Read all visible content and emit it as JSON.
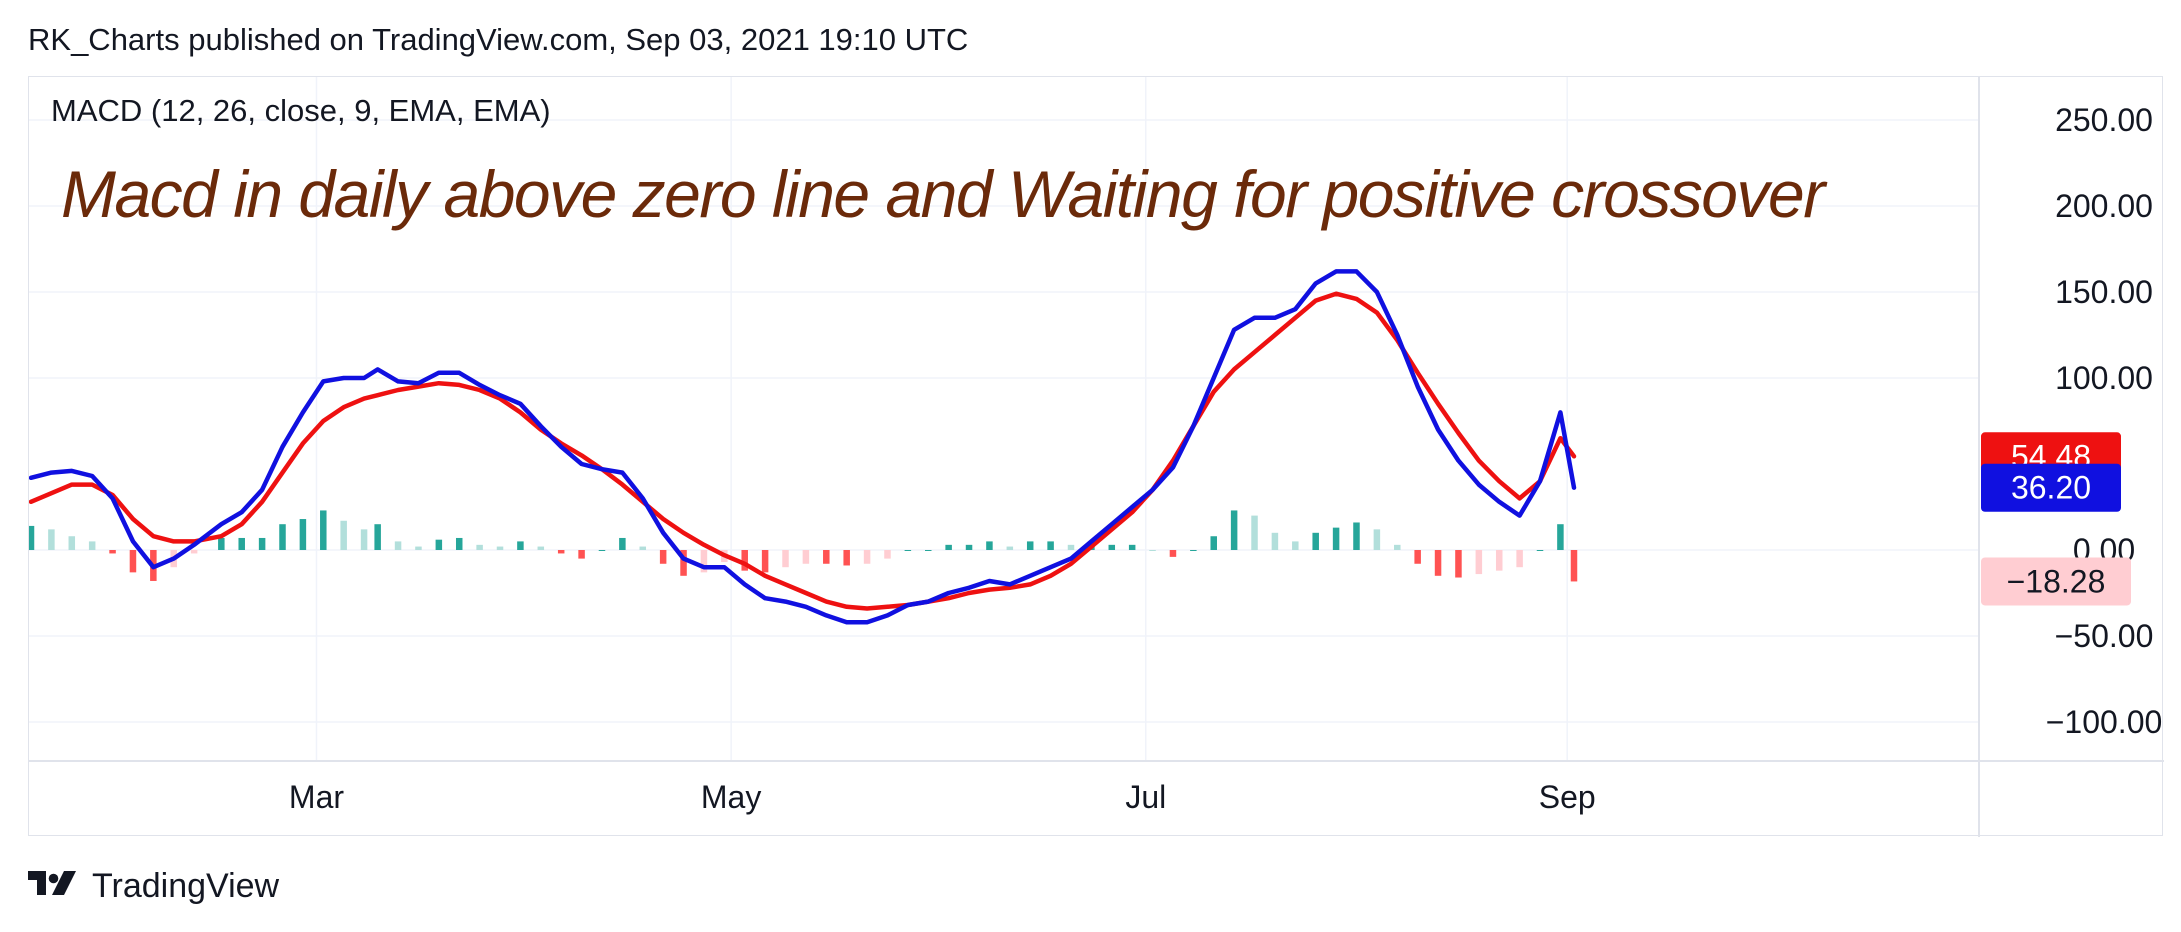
{
  "header": {
    "publish_line": "RK_Charts published on TradingView.com, Sep 03, 2021 19:10 UTC"
  },
  "indicator_label": "MACD (12, 26, close, 9, EMA, EMA)",
  "annotation": "Macd in daily above zero line and Waiting for positive crossover",
  "footer": {
    "brand": "TradingView",
    "logo_icon": "tradingview-logo-icon"
  },
  "colors": {
    "macd_line": "#1010e0",
    "signal_line": "#ee1111",
    "hist_pos_strong": "#26a69a",
    "hist_pos_weak": "#b2dfdb",
    "hist_neg_strong": "#ff5252",
    "hist_neg_weak": "#ffcdd2",
    "annotation": "#6b2a0a"
  },
  "chart_data": {
    "type": "line",
    "title": "MACD (12, 26, close, 9, EMA, EMA)",
    "x_range": [
      "2021-01-18",
      "2021-09-02"
    ],
    "ylim": [
      -120,
      270
    ],
    "y_ticks": [
      "250.00",
      "200.00",
      "150.00",
      "100.00",
      "0.00",
      "−50.00",
      "−100.00"
    ],
    "x_ticks": [
      {
        "label": "Mar",
        "date": "2021-03-01"
      },
      {
        "label": "May",
        "date": "2021-05-01"
      },
      {
        "label": "Jul",
        "date": "2021-07-01"
      },
      {
        "label": "Sep",
        "date": "2021-09-01"
      }
    ],
    "price_labels": [
      {
        "text": "54.48",
        "series": "Signal",
        "value": 54.48
      },
      {
        "text": "36.20",
        "series": "MACD",
        "value": 36.2
      },
      {
        "text": "−18.28",
        "series": "Histogram",
        "value": -18.28
      }
    ],
    "grid": true,
    "series": [
      {
        "name": "MACD",
        "points": [
          [
            "2021-01-18",
            42
          ],
          [
            "2021-01-21",
            45
          ],
          [
            "2021-01-24",
            46
          ],
          [
            "2021-01-27",
            43
          ],
          [
            "2021-01-30",
            30
          ],
          [
            "2021-02-02",
            5
          ],
          [
            "2021-02-05",
            -10
          ],
          [
            "2021-02-08",
            -5
          ],
          [
            "2021-02-11",
            3
          ],
          [
            "2021-02-15",
            15
          ],
          [
            "2021-02-18",
            22
          ],
          [
            "2021-02-21",
            35
          ],
          [
            "2021-02-24",
            60
          ],
          [
            "2021-02-27",
            80
          ],
          [
            "2021-03-02",
            98
          ],
          [
            "2021-03-05",
            100
          ],
          [
            "2021-03-08",
            100
          ],
          [
            "2021-03-10",
            105
          ],
          [
            "2021-03-13",
            98
          ],
          [
            "2021-03-16",
            97
          ],
          [
            "2021-03-19",
            103
          ],
          [
            "2021-03-22",
            103
          ],
          [
            "2021-03-25",
            96
          ],
          [
            "2021-03-28",
            90
          ],
          [
            "2021-03-31",
            85
          ],
          [
            "2021-04-03",
            72
          ],
          [
            "2021-04-06",
            60
          ],
          [
            "2021-04-09",
            50
          ],
          [
            "2021-04-12",
            47
          ],
          [
            "2021-04-15",
            45
          ],
          [
            "2021-04-18",
            30
          ],
          [
            "2021-04-21",
            10
          ],
          [
            "2021-04-24",
            -5
          ],
          [
            "2021-04-27",
            -10
          ],
          [
            "2021-04-30",
            -10
          ],
          [
            "2021-05-03",
            -20
          ],
          [
            "2021-05-06",
            -28
          ],
          [
            "2021-05-09",
            -30
          ],
          [
            "2021-05-12",
            -33
          ],
          [
            "2021-05-15",
            -38
          ],
          [
            "2021-05-18",
            -42
          ],
          [
            "2021-05-21",
            -42
          ],
          [
            "2021-05-24",
            -38
          ],
          [
            "2021-05-27",
            -32
          ],
          [
            "2021-05-30",
            -30
          ],
          [
            "2021-06-02",
            -25
          ],
          [
            "2021-06-05",
            -22
          ],
          [
            "2021-06-08",
            -18
          ],
          [
            "2021-06-11",
            -20
          ],
          [
            "2021-06-14",
            -15
          ],
          [
            "2021-06-17",
            -10
          ],
          [
            "2021-06-20",
            -5
          ],
          [
            "2021-06-23",
            5
          ],
          [
            "2021-06-26",
            15
          ],
          [
            "2021-06-29",
            25
          ],
          [
            "2021-07-02",
            35
          ],
          [
            "2021-07-05",
            48
          ],
          [
            "2021-07-08",
            72
          ],
          [
            "2021-07-11",
            100
          ],
          [
            "2021-07-14",
            128
          ],
          [
            "2021-07-17",
            135
          ],
          [
            "2021-07-20",
            135
          ],
          [
            "2021-07-23",
            140
          ],
          [
            "2021-07-26",
            155
          ],
          [
            "2021-07-29",
            162
          ],
          [
            "2021-08-01",
            162
          ],
          [
            "2021-08-04",
            150
          ],
          [
            "2021-08-07",
            125
          ],
          [
            "2021-08-10",
            95
          ],
          [
            "2021-08-13",
            70
          ],
          [
            "2021-08-16",
            52
          ],
          [
            "2021-08-19",
            38
          ],
          [
            "2021-08-22",
            28
          ],
          [
            "2021-08-25",
            20
          ],
          [
            "2021-08-28",
            40
          ],
          [
            "2021-08-31",
            80
          ],
          [
            "2021-09-02",
            36.2
          ]
        ]
      },
      {
        "name": "Signal",
        "points": [
          [
            "2021-01-18",
            28
          ],
          [
            "2021-01-21",
            33
          ],
          [
            "2021-01-24",
            38
          ],
          [
            "2021-01-27",
            38
          ],
          [
            "2021-01-30",
            32
          ],
          [
            "2021-02-02",
            18
          ],
          [
            "2021-02-05",
            8
          ],
          [
            "2021-02-08",
            5
          ],
          [
            "2021-02-11",
            5
          ],
          [
            "2021-02-15",
            8
          ],
          [
            "2021-02-18",
            15
          ],
          [
            "2021-02-21",
            28
          ],
          [
            "2021-02-24",
            45
          ],
          [
            "2021-02-27",
            62
          ],
          [
            "2021-03-02",
            75
          ],
          [
            "2021-03-05",
            83
          ],
          [
            "2021-03-08",
            88
          ],
          [
            "2021-03-10",
            90
          ],
          [
            "2021-03-13",
            93
          ],
          [
            "2021-03-16",
            95
          ],
          [
            "2021-03-19",
            97
          ],
          [
            "2021-03-22",
            96
          ],
          [
            "2021-03-25",
            93
          ],
          [
            "2021-03-28",
            88
          ],
          [
            "2021-03-31",
            80
          ],
          [
            "2021-04-03",
            70
          ],
          [
            "2021-04-06",
            62
          ],
          [
            "2021-04-09",
            55
          ],
          [
            "2021-04-12",
            47
          ],
          [
            "2021-04-15",
            38
          ],
          [
            "2021-04-18",
            28
          ],
          [
            "2021-04-21",
            18
          ],
          [
            "2021-04-24",
            10
          ],
          [
            "2021-04-27",
            3
          ],
          [
            "2021-04-30",
            -3
          ],
          [
            "2021-05-03",
            -8
          ],
          [
            "2021-05-06",
            -15
          ],
          [
            "2021-05-09",
            -20
          ],
          [
            "2021-05-12",
            -25
          ],
          [
            "2021-05-15",
            -30
          ],
          [
            "2021-05-18",
            -33
          ],
          [
            "2021-05-21",
            -34
          ],
          [
            "2021-05-24",
            -33
          ],
          [
            "2021-05-27",
            -32
          ],
          [
            "2021-05-30",
            -30
          ],
          [
            "2021-06-02",
            -28
          ],
          [
            "2021-06-05",
            -25
          ],
          [
            "2021-06-08",
            -23
          ],
          [
            "2021-06-11",
            -22
          ],
          [
            "2021-06-14",
            -20
          ],
          [
            "2021-06-17",
            -15
          ],
          [
            "2021-06-20",
            -8
          ],
          [
            "2021-06-23",
            2
          ],
          [
            "2021-06-26",
            12
          ],
          [
            "2021-06-29",
            22
          ],
          [
            "2021-07-02",
            35
          ],
          [
            "2021-07-05",
            52
          ],
          [
            "2021-07-08",
            72
          ],
          [
            "2021-07-11",
            92
          ],
          [
            "2021-07-14",
            105
          ],
          [
            "2021-07-17",
            115
          ],
          [
            "2021-07-20",
            125
          ],
          [
            "2021-07-23",
            135
          ],
          [
            "2021-07-26",
            145
          ],
          [
            "2021-07-29",
            149
          ],
          [
            "2021-08-01",
            146
          ],
          [
            "2021-08-04",
            138
          ],
          [
            "2021-08-07",
            122
          ],
          [
            "2021-08-10",
            103
          ],
          [
            "2021-08-13",
            85
          ],
          [
            "2021-08-16",
            68
          ],
          [
            "2021-08-19",
            52
          ],
          [
            "2021-08-22",
            40
          ],
          [
            "2021-08-25",
            30
          ],
          [
            "2021-08-28",
            40
          ],
          [
            "2021-08-31",
            65
          ],
          [
            "2021-09-02",
            54.48
          ]
        ]
      },
      {
        "name": "Histogram",
        "values": [
          {
            "date": "2021-01-18",
            "v": 14
          },
          {
            "date": "2021-01-21",
            "v": 12
          },
          {
            "date": "2021-01-24",
            "v": 8
          },
          {
            "date": "2021-01-27",
            "v": 5
          },
          {
            "date": "2021-01-30",
            "v": -2
          },
          {
            "date": "2021-02-02",
            "v": -13
          },
          {
            "date": "2021-02-05",
            "v": -18
          },
          {
            "date": "2021-02-08",
            "v": -10
          },
          {
            "date": "2021-02-11",
            "v": -2
          },
          {
            "date": "2021-02-15",
            "v": 7
          },
          {
            "date": "2021-02-18",
            "v": 7
          },
          {
            "date": "2021-02-21",
            "v": 7
          },
          {
            "date": "2021-02-24",
            "v": 15
          },
          {
            "date": "2021-02-27",
            "v": 18
          },
          {
            "date": "2021-03-02",
            "v": 23
          },
          {
            "date": "2021-03-05",
            "v": 17
          },
          {
            "date": "2021-03-08",
            "v": 12
          },
          {
            "date": "2021-03-10",
            "v": 15
          },
          {
            "date": "2021-03-13",
            "v": 5
          },
          {
            "date": "2021-03-16",
            "v": 2
          },
          {
            "date": "2021-03-19",
            "v": 6
          },
          {
            "date": "2021-03-22",
            "v": 7
          },
          {
            "date": "2021-03-25",
            "v": 3
          },
          {
            "date": "2021-03-28",
            "v": 2
          },
          {
            "date": "2021-03-31",
            "v": 5
          },
          {
            "date": "2021-04-03",
            "v": 2
          },
          {
            "date": "2021-04-06",
            "v": -2
          },
          {
            "date": "2021-04-09",
            "v": -5
          },
          {
            "date": "2021-04-12",
            "v": 0
          },
          {
            "date": "2021-04-15",
            "v": 7
          },
          {
            "date": "2021-04-18",
            "v": 2
          },
          {
            "date": "2021-04-21",
            "v": -8
          },
          {
            "date": "2021-04-24",
            "v": -15
          },
          {
            "date": "2021-04-27",
            "v": -13
          },
          {
            "date": "2021-04-30",
            "v": -7
          },
          {
            "date": "2021-05-03",
            "v": -12
          },
          {
            "date": "2021-05-06",
            "v": -13
          },
          {
            "date": "2021-05-09",
            "v": -10
          },
          {
            "date": "2021-05-12",
            "v": -8
          },
          {
            "date": "2021-05-15",
            "v": -8
          },
          {
            "date": "2021-05-18",
            "v": -9
          },
          {
            "date": "2021-05-21",
            "v": -8
          },
          {
            "date": "2021-05-24",
            "v": -5
          },
          {
            "date": "2021-05-27",
            "v": 0
          },
          {
            "date": "2021-05-30",
            "v": 0
          },
          {
            "date": "2021-06-02",
            "v": 3
          },
          {
            "date": "2021-06-05",
            "v": 3
          },
          {
            "date": "2021-06-08",
            "v": 5
          },
          {
            "date": "2021-06-11",
            "v": 2
          },
          {
            "date": "2021-06-14",
            "v": 5
          },
          {
            "date": "2021-06-17",
            "v": 5
          },
          {
            "date": "2021-06-20",
            "v": 3
          },
          {
            "date": "2021-06-23",
            "v": 3
          },
          {
            "date": "2021-06-26",
            "v": 3
          },
          {
            "date": "2021-06-29",
            "v": 3
          },
          {
            "date": "2021-07-02",
            "v": 0
          },
          {
            "date": "2021-07-05",
            "v": -4
          },
          {
            "date": "2021-07-08",
            "v": 0
          },
          {
            "date": "2021-07-11",
            "v": 8
          },
          {
            "date": "2021-07-14",
            "v": 23
          },
          {
            "date": "2021-07-17",
            "v": 20
          },
          {
            "date": "2021-07-20",
            "v": 10
          },
          {
            "date": "2021-07-23",
            "v": 5
          },
          {
            "date": "2021-07-26",
            "v": 10
          },
          {
            "date": "2021-07-29",
            "v": 13
          },
          {
            "date": "2021-08-01",
            "v": 16
          },
          {
            "date": "2021-08-04",
            "v": 12
          },
          {
            "date": "2021-08-07",
            "v": 3
          },
          {
            "date": "2021-08-10",
            "v": -8
          },
          {
            "date": "2021-08-13",
            "v": -15
          },
          {
            "date": "2021-08-16",
            "v": -16
          },
          {
            "date": "2021-08-19",
            "v": -14
          },
          {
            "date": "2021-08-22",
            "v": -12
          },
          {
            "date": "2021-08-25",
            "v": -10
          },
          {
            "date": "2021-08-28",
            "v": 0
          },
          {
            "date": "2021-08-31",
            "v": 15
          },
          {
            "date": "2021-09-02",
            "v": -18.28
          }
        ]
      }
    ]
  }
}
